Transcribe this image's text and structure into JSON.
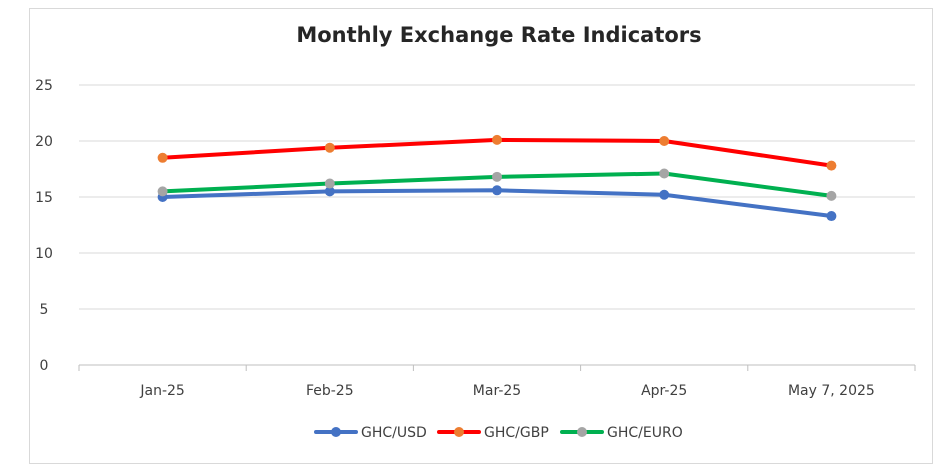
{
  "chart_data": {
    "type": "line",
    "title": "Monthly Exchange Rate Indicators",
    "xlabel": "",
    "ylabel": "",
    "categories": [
      "Jan-25",
      "Feb-25",
      "Mar-25",
      "Apr-25",
      "May 7, 2025"
    ],
    "ylim": [
      0,
      25
    ],
    "yticks": [
      "0",
      "5",
      "10",
      "15",
      "20",
      "25"
    ],
    "grid": true,
    "legend_position": "bottom",
    "series": [
      {
        "name": "GHC/USD",
        "values": [
          15.0,
          15.5,
          15.6,
          15.2,
          13.3
        ],
        "line_color": "#4472c4",
        "marker_color": "#4472c4"
      },
      {
        "name": "GHC/GBP",
        "values": [
          18.5,
          19.4,
          20.1,
          20.0,
          17.8
        ],
        "line_color": "#ff0000",
        "marker_color": "#ed7d31"
      },
      {
        "name": "GHC/EURO",
        "values": [
          15.5,
          16.2,
          16.8,
          17.1,
          15.1
        ],
        "line_color": "#00b050",
        "marker_color": "#a5a5a5"
      }
    ]
  }
}
